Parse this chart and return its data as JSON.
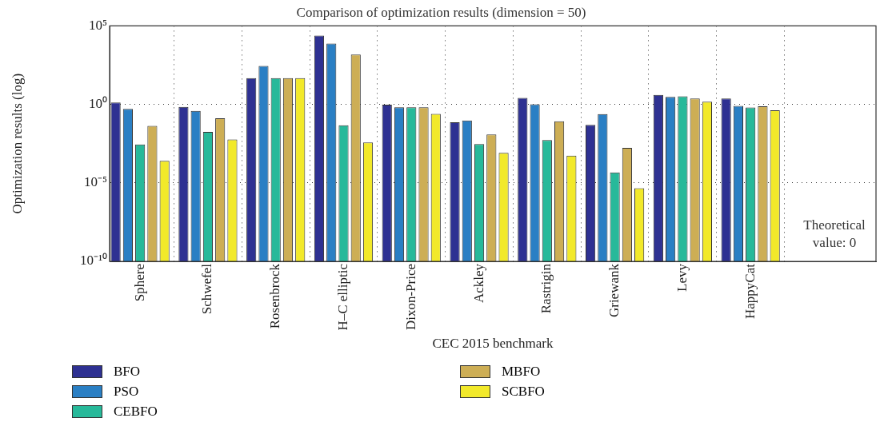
{
  "chart_data": {
    "type": "bar",
    "title": "Comparison of optimization results (dimension = 50)",
    "xlabel": "CEC 2015 benchmark",
    "ylabel": "Optimization results (log)",
    "categories": [
      "Sphere",
      "Schwefel",
      "Rosenbrock",
      "H–C elliptic",
      "Dixon-Price",
      "Ackley",
      "Rastrigin",
      "Griewank",
      "Levy",
      "HappyCat"
    ],
    "series": [
      {
        "name": "BFO",
        "color": "#2e3192",
        "values": [
          1.3,
          0.69,
          47,
          24000,
          0.95,
          0.072,
          2.6,
          0.049,
          4.0,
          2.4
        ]
      },
      {
        "name": "PSO",
        "color": "#2a7fc4",
        "values": [
          0.52,
          0.38,
          280,
          7600,
          0.66,
          0.095,
          1.0,
          0.24,
          3.0,
          0.79
        ]
      },
      {
        "name": "CEBFO",
        "color": "#27b99a",
        "values": [
          0.0028,
          0.018,
          47,
          0.047,
          0.66,
          0.003,
          0.0054,
          4.6e-05,
          3.3,
          0.63
        ]
      },
      {
        "name": "MBFO",
        "color": "#cdae55",
        "values": [
          0.043,
          0.13,
          47,
          1500,
          0.66,
          0.012,
          0.083,
          0.0017,
          2.4,
          0.76
        ]
      },
      {
        "name": "SCBFO",
        "color": "#f2e92a",
        "values": [
          0.00025,
          0.0059,
          47,
          0.0037,
          0.25,
          0.00081,
          0.00054,
          4.6e-06,
          1.5,
          0.42
        ]
      }
    ],
    "log": true,
    "ylim": [
      1e-10,
      100000
    ],
    "yticks": [
      {
        "value": 1e-10,
        "label": "10⁻¹⁰"
      },
      {
        "value": 1e-05,
        "label": "10⁻⁵"
      },
      {
        "value": 1,
        "label": "10⁰"
      },
      {
        "value": 100000,
        "label": "10⁵"
      }
    ],
    "grid": true,
    "legend": "bottom",
    "annotations": [
      "Theoretical value: 0"
    ]
  }
}
